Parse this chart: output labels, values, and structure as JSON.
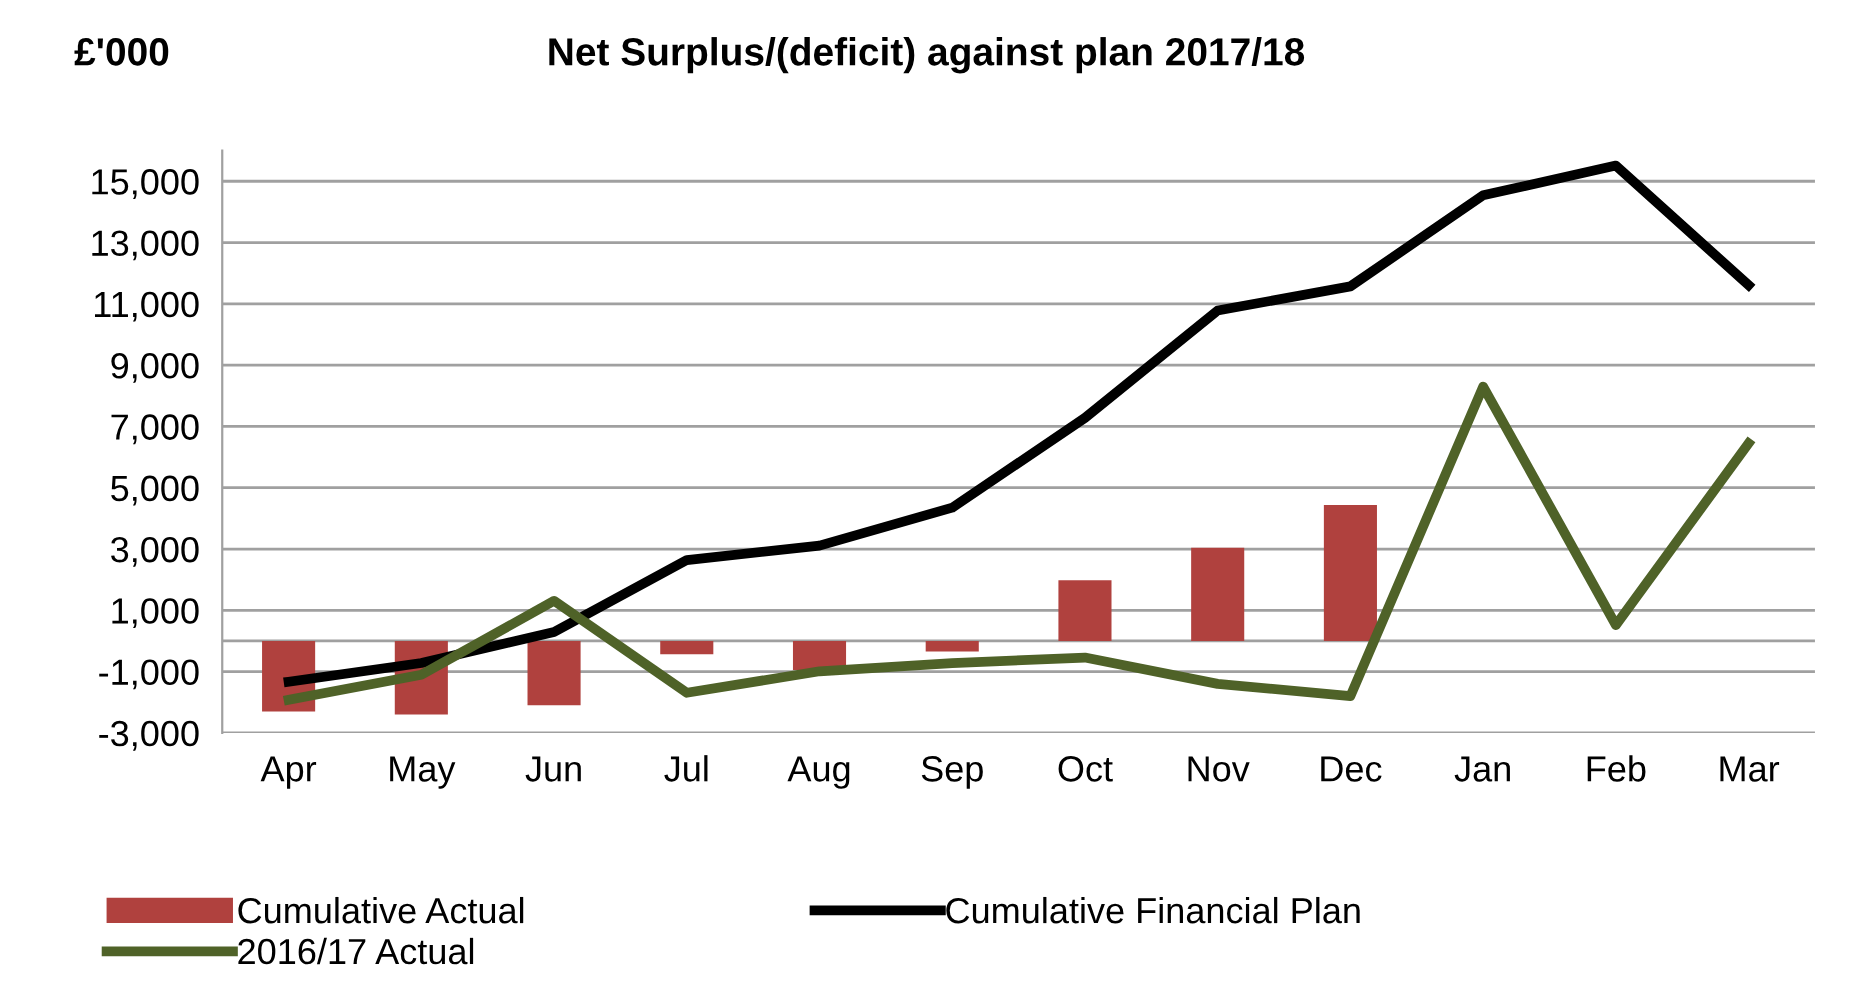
{
  "chart_data": {
    "type": "bar",
    "title": "Net Surplus/(deficit) against plan 2017/18",
    "ylabel": "£'000",
    "categories": [
      "Apr",
      "May",
      "Jun",
      "Jul",
      "Aug",
      "Sep",
      "Oct",
      "Nov",
      "Dec",
      "Jan",
      "Feb",
      "Mar"
    ],
    "series": [
      {
        "name": "Cumulative Actual",
        "color": "#b0413e",
        "values": [
          -2300,
          -2400,
          -2100,
          -430,
          -950,
          -340,
          1980,
          3040,
          4440,
          null,
          null,
          null
        ]
      },
      {
        "name": "Cumulative Financial Plan",
        "type": "line",
        "color": "#000000",
        "values": [
          -1330,
          -720,
          290,
          2640,
          3110,
          4350,
          7280,
          10780,
          11570,
          14540,
          15510,
          11610
        ]
      },
      {
        "name": "2016/17 Actual",
        "type": "line",
        "color": "#4f6228",
        "values": [
          -1920,
          -1100,
          1310,
          -1690,
          -990,
          -720,
          -540,
          -1400,
          -1800,
          8300,
          520,
          6450
        ]
      }
    ],
    "ylim": [
      -3000,
      16000
    ],
    "yticks": [
      {
        "value": -3000,
        "label": "-3,000"
      },
      {
        "value": -1000,
        "label": "-1,000"
      },
      {
        "value": 1000,
        "label": "1,000"
      },
      {
        "value": 3000,
        "label": "3,000"
      },
      {
        "value": 5000,
        "label": "5,000"
      },
      {
        "value": 7000,
        "label": "7,000"
      },
      {
        "value": 9000,
        "label": "9,000"
      },
      {
        "value": 11000,
        "label": "11,000"
      },
      {
        "value": 13000,
        "label": "13,000"
      },
      {
        "value": 15000,
        "label": "15,000"
      }
    ],
    "grid": "y",
    "legend": "bottom",
    "line_style": "solid",
    "marker": "none"
  }
}
